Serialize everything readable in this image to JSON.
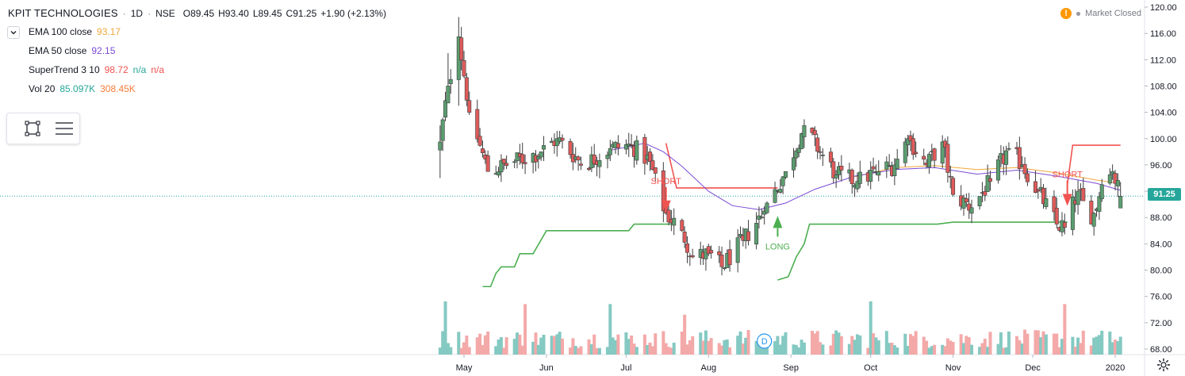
{
  "header": {
    "symbol": "KPIT TECHNOLOGIES",
    "sep": "·",
    "interval": "1D",
    "exchange": "NSE",
    "open": "O89.45",
    "high": "H93.40",
    "low": "L89.45",
    "close": "C91.25",
    "change": "+1.90 (+2.13%)"
  },
  "indicators": [
    {
      "name": "EMA 100 close",
      "values": [
        {
          "text": "93.17",
          "color": "#f0a83c"
        }
      ]
    },
    {
      "name": "EMA 50 close",
      "values": [
        {
          "text": "92.15",
          "color": "#7b4bd4"
        }
      ]
    },
    {
      "name": "SuperTrend 3 10",
      "values": [
        {
          "text": "98.72",
          "color": "#ef5350"
        },
        {
          "text": "n/a",
          "color": "#26a69a"
        },
        {
          "text": "n/a",
          "color": "#ef5350"
        }
      ]
    },
    {
      "name": "Vol 20",
      "values": [
        {
          "text": "85.097K",
          "color": "#26a69a"
        },
        {
          "text": "308.45K",
          "color": "#f57c3a"
        }
      ]
    }
  ],
  "status": {
    "warning_icon": "!",
    "text": "Market Closed"
  },
  "last_price": "91.25",
  "events": {
    "dividend_label": "D"
  },
  "annotations": [
    {
      "text": "SHORT",
      "color": "#ef5350"
    },
    {
      "text": "LONG",
      "color": "#4caf50"
    },
    {
      "text": "SHORT",
      "color": "#ef5350"
    }
  ],
  "icons": {
    "collapse": "chevron-down-icon",
    "rectangle": "rectangle-tool-icon",
    "lines": "lines-tool-icon",
    "settings": "gear-icon"
  },
  "colors": {
    "up": "#5b9e70",
    "down": "#e05a5a",
    "vol_up": "#84c9c2",
    "vol_down": "#f4a9a9",
    "ema100": "#f0a83c",
    "ema50": "#7b4bd4",
    "st_red": "#ef5350",
    "st_green": "#4caf50"
  },
  "chart_data": {
    "type": "candlestick",
    "ylim": [
      66,
      121
    ],
    "y_ticks": [
      "120.00",
      "116.00",
      "112.00",
      "108.00",
      "104.00",
      "100.00",
      "96.00",
      "92.00",
      "88.00",
      "84.00",
      "80.00",
      "76.00",
      "72.00",
      "68.00"
    ],
    "x_ticks": [
      {
        "label": "May",
        "date": "2019-05-01"
      },
      {
        "label": "Jun",
        "date": "2019-06-01"
      },
      {
        "label": "Jul",
        "date": "2019-07-01"
      },
      {
        "label": "Aug",
        "date": "2019-08-01"
      },
      {
        "label": "Sep",
        "date": "2019-09-01"
      },
      {
        "label": "Oct",
        "date": "2019-10-01"
      },
      {
        "label": "Nov",
        "date": "2019-11-01"
      },
      {
        "label": "Dec",
        "date": "2019-12-01"
      },
      {
        "label": "2020",
        "date": "2020-01-01"
      }
    ],
    "anchors": [
      {
        "date": "2019-04-22",
        "close": 99.5,
        "low": 94.0,
        "high": 102.0
      },
      {
        "date": "2019-04-25",
        "close": 108.0,
        "low": 106.0,
        "high": 113.0
      },
      {
        "date": "2019-04-29",
        "close": 115.5,
        "low": 105.0,
        "high": 118.5
      },
      {
        "date": "2019-05-03",
        "close": 104.0
      },
      {
        "date": "2019-05-10",
        "close": 95.0
      },
      {
        "date": "2019-05-20",
        "close": 96.5
      },
      {
        "date": "2019-05-30",
        "close": 98.0
      },
      {
        "date": "2019-06-05",
        "close": 100.0
      },
      {
        "date": "2019-06-15",
        "close": 96.0
      },
      {
        "date": "2019-06-25",
        "close": 98.5
      },
      {
        "date": "2019-07-03",
        "close": 99.0
      },
      {
        "date": "2019-07-10",
        "close": 96.5
      },
      {
        "date": "2019-07-15",
        "close": 89.0
      },
      {
        "date": "2019-07-22",
        "close": 86.0
      },
      {
        "date": "2019-07-26",
        "close": 82.0
      },
      {
        "date": "2019-08-01",
        "close": 82.5
      },
      {
        "date": "2019-08-06",
        "close": 80.5
      },
      {
        "date": "2019-08-14",
        "close": 84.5
      },
      {
        "date": "2019-08-22",
        "close": 89.0
      },
      {
        "date": "2019-08-30",
        "close": 95.0
      },
      {
        "date": "2019-09-06",
        "close": 102.0
      },
      {
        "date": "2019-09-12",
        "close": 98.0
      },
      {
        "date": "2019-09-18",
        "close": 94.5
      },
      {
        "date": "2019-09-26",
        "close": 93.5
      },
      {
        "date": "2019-10-03",
        "close": 95.0
      },
      {
        "date": "2019-10-10",
        "close": 96.0
      },
      {
        "date": "2019-10-15",
        "close": 100.0
      },
      {
        "date": "2019-10-22",
        "close": 96.0
      },
      {
        "date": "2019-10-28",
        "close": 99.5
      },
      {
        "date": "2019-11-01",
        "close": 91.5
      },
      {
        "date": "2019-11-08",
        "close": 89.5
      },
      {
        "date": "2019-11-15",
        "close": 93.5
      },
      {
        "date": "2019-11-22",
        "close": 98.5
      },
      {
        "date": "2019-11-27",
        "close": 96.0
      },
      {
        "date": "2019-12-03",
        "close": 92.0
      },
      {
        "date": "2019-12-10",
        "close": 87.0
      },
      {
        "date": "2019-12-13",
        "close": 86.5
      },
      {
        "date": "2019-12-18",
        "close": 92.0
      },
      {
        "date": "2019-12-23",
        "close": 87.0
      },
      {
        "date": "2019-12-27",
        "close": 93.0
      },
      {
        "date": "2019-12-31",
        "close": 95.0
      },
      {
        "date": "2020-01-03",
        "close": 91.25,
        "open": 89.45,
        "high": 93.4,
        "low": 89.45
      }
    ],
    "ema50": [
      {
        "date": "2019-06-25",
        "value": 98.2
      },
      {
        "date": "2019-07-08",
        "value": 99.3
      },
      {
        "date": "2019-07-15",
        "value": 98.0
      },
      {
        "date": "2019-07-22",
        "value": 95.8
      },
      {
        "date": "2019-08-01",
        "value": 92.0
      },
      {
        "date": "2019-08-10",
        "value": 89.8
      },
      {
        "date": "2019-08-20",
        "value": 89.2
      },
      {
        "date": "2019-08-30",
        "value": 90.2
      },
      {
        "date": "2019-09-10",
        "value": 92.3
      },
      {
        "date": "2019-09-25",
        "value": 94.3
      },
      {
        "date": "2019-10-10",
        "value": 95.3
      },
      {
        "date": "2019-10-25",
        "value": 95.6
      },
      {
        "date": "2019-11-10",
        "value": 94.6
      },
      {
        "date": "2019-11-25",
        "value": 95.2
      },
      {
        "date": "2019-12-10",
        "value": 94.3
      },
      {
        "date": "2019-12-25",
        "value": 93.2
      },
      {
        "date": "2020-01-03",
        "value": 92.15
      }
    ],
    "ema100": [
      {
        "date": "2019-09-25",
        "value": 94.2
      },
      {
        "date": "2019-10-10",
        "value": 95.6
      },
      {
        "date": "2019-10-25",
        "value": 95.9
      },
      {
        "date": "2019-11-10",
        "value": 95.3
      },
      {
        "date": "2019-11-25",
        "value": 95.6
      },
      {
        "date": "2019-12-10",
        "value": 94.8
      },
      {
        "date": "2019-12-25",
        "value": 93.7
      },
      {
        "date": "2020-01-03",
        "value": 93.17
      }
    ],
    "supertrend": [
      {
        "color": "green",
        "points": [
          [
            "2019-05-08",
            77.5
          ],
          [
            "2019-05-11",
            77.5
          ],
          [
            "2019-05-13",
            79.5
          ],
          [
            "2019-05-15",
            80.5
          ],
          [
            "2019-05-20",
            80.5
          ],
          [
            "2019-05-22",
            82.5
          ],
          [
            "2019-05-27",
            82.5
          ],
          [
            "2019-06-01",
            86.0
          ],
          [
            "2019-07-02",
            86.0
          ],
          [
            "2019-07-04",
            87.0
          ],
          [
            "2019-07-18",
            87.0
          ]
        ]
      },
      {
        "color": "red",
        "points": [
          [
            "2019-07-16",
            99.3
          ],
          [
            "2019-07-20",
            92.5
          ],
          [
            "2019-08-21",
            92.5
          ],
          [
            "2019-08-27",
            92.5
          ]
        ]
      },
      {
        "color": "green",
        "points": [
          [
            "2019-08-27",
            78.5
          ],
          [
            "2019-08-31",
            79.0
          ],
          [
            "2019-09-03",
            82.0
          ],
          [
            "2019-09-06",
            84.0
          ],
          [
            "2019-09-08",
            87.0
          ],
          [
            "2019-10-26",
            87.0
          ],
          [
            "2019-11-01",
            87.3
          ],
          [
            "2019-12-14",
            87.3
          ]
        ]
      },
      {
        "color": "red",
        "points": [
          [
            "2019-12-14",
            93.0
          ],
          [
            "2019-12-16",
            99.0
          ],
          [
            "2020-01-03",
            99.0
          ]
        ]
      }
    ],
    "signals": [
      {
        "type": "SHORT",
        "date": "2019-07-16",
        "price": 89.5
      },
      {
        "type": "LONG",
        "date": "2019-08-27",
        "price": 87.5
      },
      {
        "type": "SHORT",
        "date": "2019-12-14",
        "price": 90.5
      }
    ],
    "volume_spikes": [
      {
        "date": "2019-04-24",
        "value": 1.0
      },
      {
        "date": "2019-05-24",
        "value": 0.95
      },
      {
        "date": "2019-06-25",
        "value": 0.95
      },
      {
        "date": "2019-07-23",
        "value": 0.75
      },
      {
        "date": "2019-10-01",
        "value": 1.0
      },
      {
        "date": "2019-12-13",
        "value": 0.95
      }
    ],
    "dividend_date": "2019-08-22"
  }
}
